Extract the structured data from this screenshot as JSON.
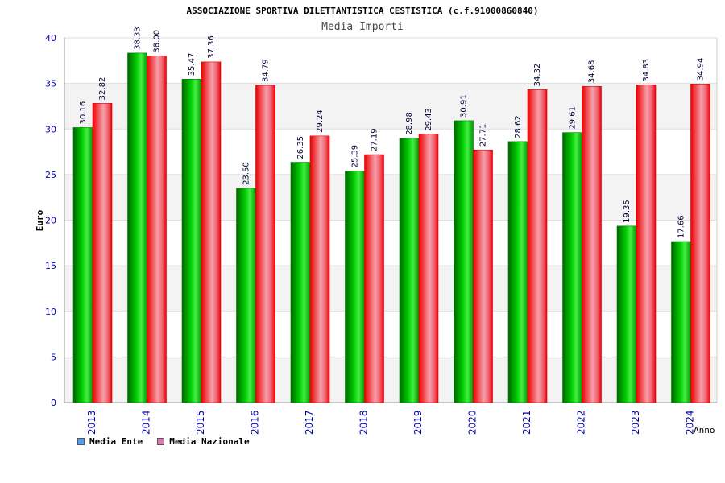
{
  "chart_data": {
    "type": "bar",
    "title": "ASSOCIAZIONE SPORTIVA DILETTANTISTICA CESTISTICA (c.f.91000860840)",
    "subtitle": "Media Importi",
    "xlabel": "Anno",
    "ylabel": "Euro",
    "ylim": [
      0,
      40
    ],
    "yticks": [
      0,
      5,
      10,
      15,
      20,
      25,
      30,
      35,
      40
    ],
    "categories": [
      "2013",
      "2014",
      "2015",
      "2016",
      "2017",
      "2018",
      "2019",
      "2020",
      "2021",
      "2022",
      "2023",
      "2024"
    ],
    "series": [
      {
        "name": "Media Ente",
        "values": [
          30.16,
          38.33,
          35.47,
          23.5,
          26.35,
          25.39,
          28.98,
          30.91,
          28.62,
          29.61,
          19.35,
          17.66
        ],
        "labels": [
          "30.16",
          "38.33",
          "35.47",
          "23.50",
          "26.35",
          "25.39",
          "28.98",
          "30.91",
          "28.62",
          "29.61",
          "19.35",
          "17.66"
        ]
      },
      {
        "name": "Media Nazionale",
        "values": [
          32.82,
          38.0,
          37.36,
          34.79,
          29.24,
          27.19,
          29.43,
          27.71,
          34.32,
          34.68,
          34.83,
          34.94
        ],
        "labels": [
          "32.82",
          "38.00",
          "37.36",
          "34.79",
          "29.24",
          "27.19",
          "29.43",
          "27.71",
          "34.32",
          "34.68",
          "34.83",
          "34.94"
        ]
      }
    ],
    "grid": true,
    "legend_position": "bottom-left",
    "colors": {
      "ente_dark": "#007a00",
      "ente_light": "#33dd33",
      "naz_dark": "#dd0000",
      "naz_light": "#f7b0b8",
      "legend_ente": "#5b9bf0",
      "legend_naz": "#e07bb0",
      "axis_text": "#0000aa"
    }
  }
}
